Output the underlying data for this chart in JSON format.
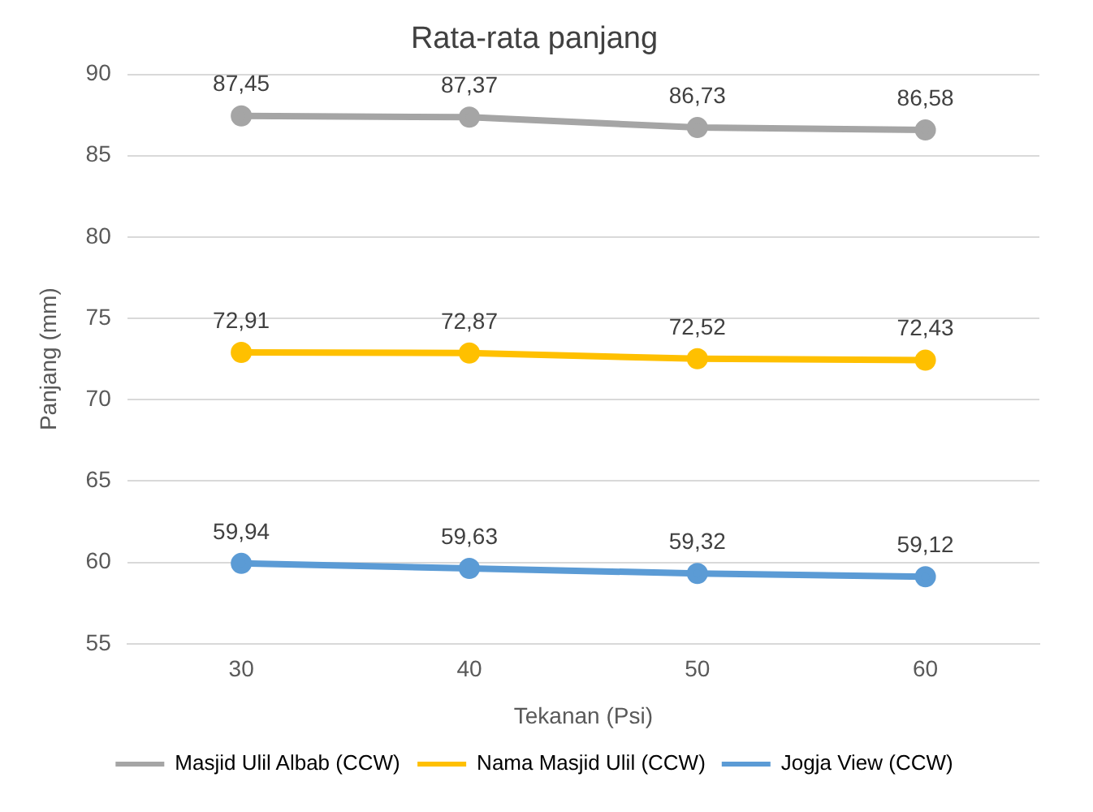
{
  "chart_data": {
    "type": "line",
    "title": "Rata-rata panjang",
    "xlabel": "Tekanan (Psi)",
    "ylabel": "Panjang (mm)",
    "categories": [
      "30",
      "40",
      "50",
      "60"
    ],
    "series": [
      {
        "name": "Masjid Ulil Albab (CCW)",
        "color": "#a5a5a5",
        "values": [
          87.45,
          87.37,
          86.73,
          86.58
        ],
        "value_labels": [
          "87,45",
          "87,37",
          "86,73",
          "86,58"
        ]
      },
      {
        "name": "Nama Masjid Ulil (CCW)",
        "color": "#ffc000",
        "values": [
          72.91,
          72.87,
          72.52,
          72.43
        ],
        "value_labels": [
          "72,91",
          "72,87",
          "72,52",
          "72,43"
        ]
      },
      {
        "name": "Jogja View (CCW)",
        "color": "#5b9bd5",
        "values": [
          59.94,
          59.63,
          59.32,
          59.12
        ],
        "value_labels": [
          "59,94",
          "59,63",
          "59,32",
          "59,12"
        ]
      }
    ],
    "ylim": [
      55,
      90
    ],
    "yticks": [
      55,
      60,
      65,
      70,
      75,
      80,
      85,
      90
    ],
    "grid": "y",
    "legend": "bottom",
    "marker": "circle"
  }
}
